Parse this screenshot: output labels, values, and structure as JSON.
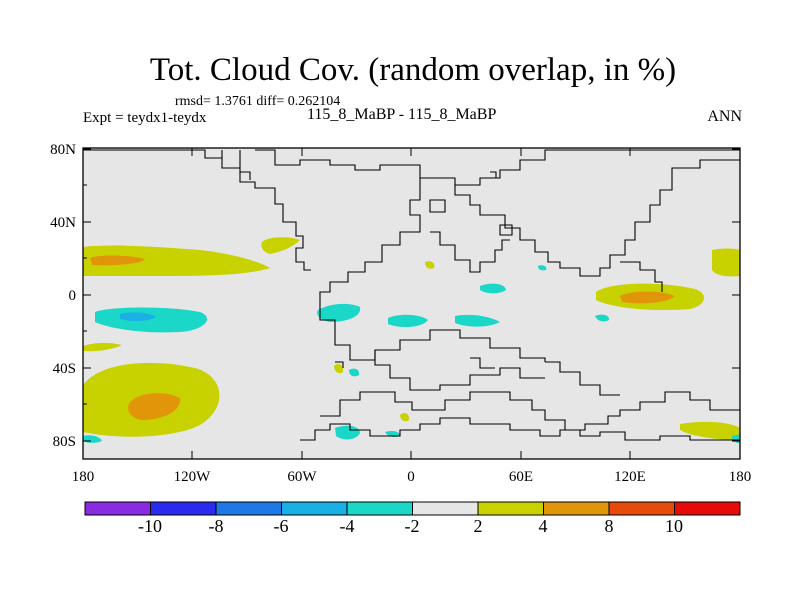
{
  "title": "Tot. Cloud Cov. (random overlap, in %)",
  "stats": "rmsd= 1.3761 diff= 0.262104",
  "experiment": "Expt = teydx1-teydx",
  "case_label": "115_8_MaBP - 115_8_MaBP",
  "season": "ANN",
  "lat_labels": [
    "80N",
    "40N",
    "0",
    "40S",
    "80S"
  ],
  "lon_labels": [
    "180",
    "120W",
    "60W",
    "0",
    "60E",
    "120E",
    "180"
  ],
  "colorbar": {
    "colors": [
      "#8a2be2",
      "#2a2af0",
      "#1e78e6",
      "#19b0e6",
      "#1ad7c8",
      "#e6e6e6",
      "#c8d200",
      "#e1960a",
      "#e64b0a",
      "#e60a0a"
    ],
    "tick_labels": [
      "-10",
      "-8",
      "-6",
      "-4",
      "-2",
      "2",
      "4",
      "8",
      "10"
    ]
  },
  "colors": {
    "background_field": "#e6e6e6",
    "coast": "#000000"
  }
}
